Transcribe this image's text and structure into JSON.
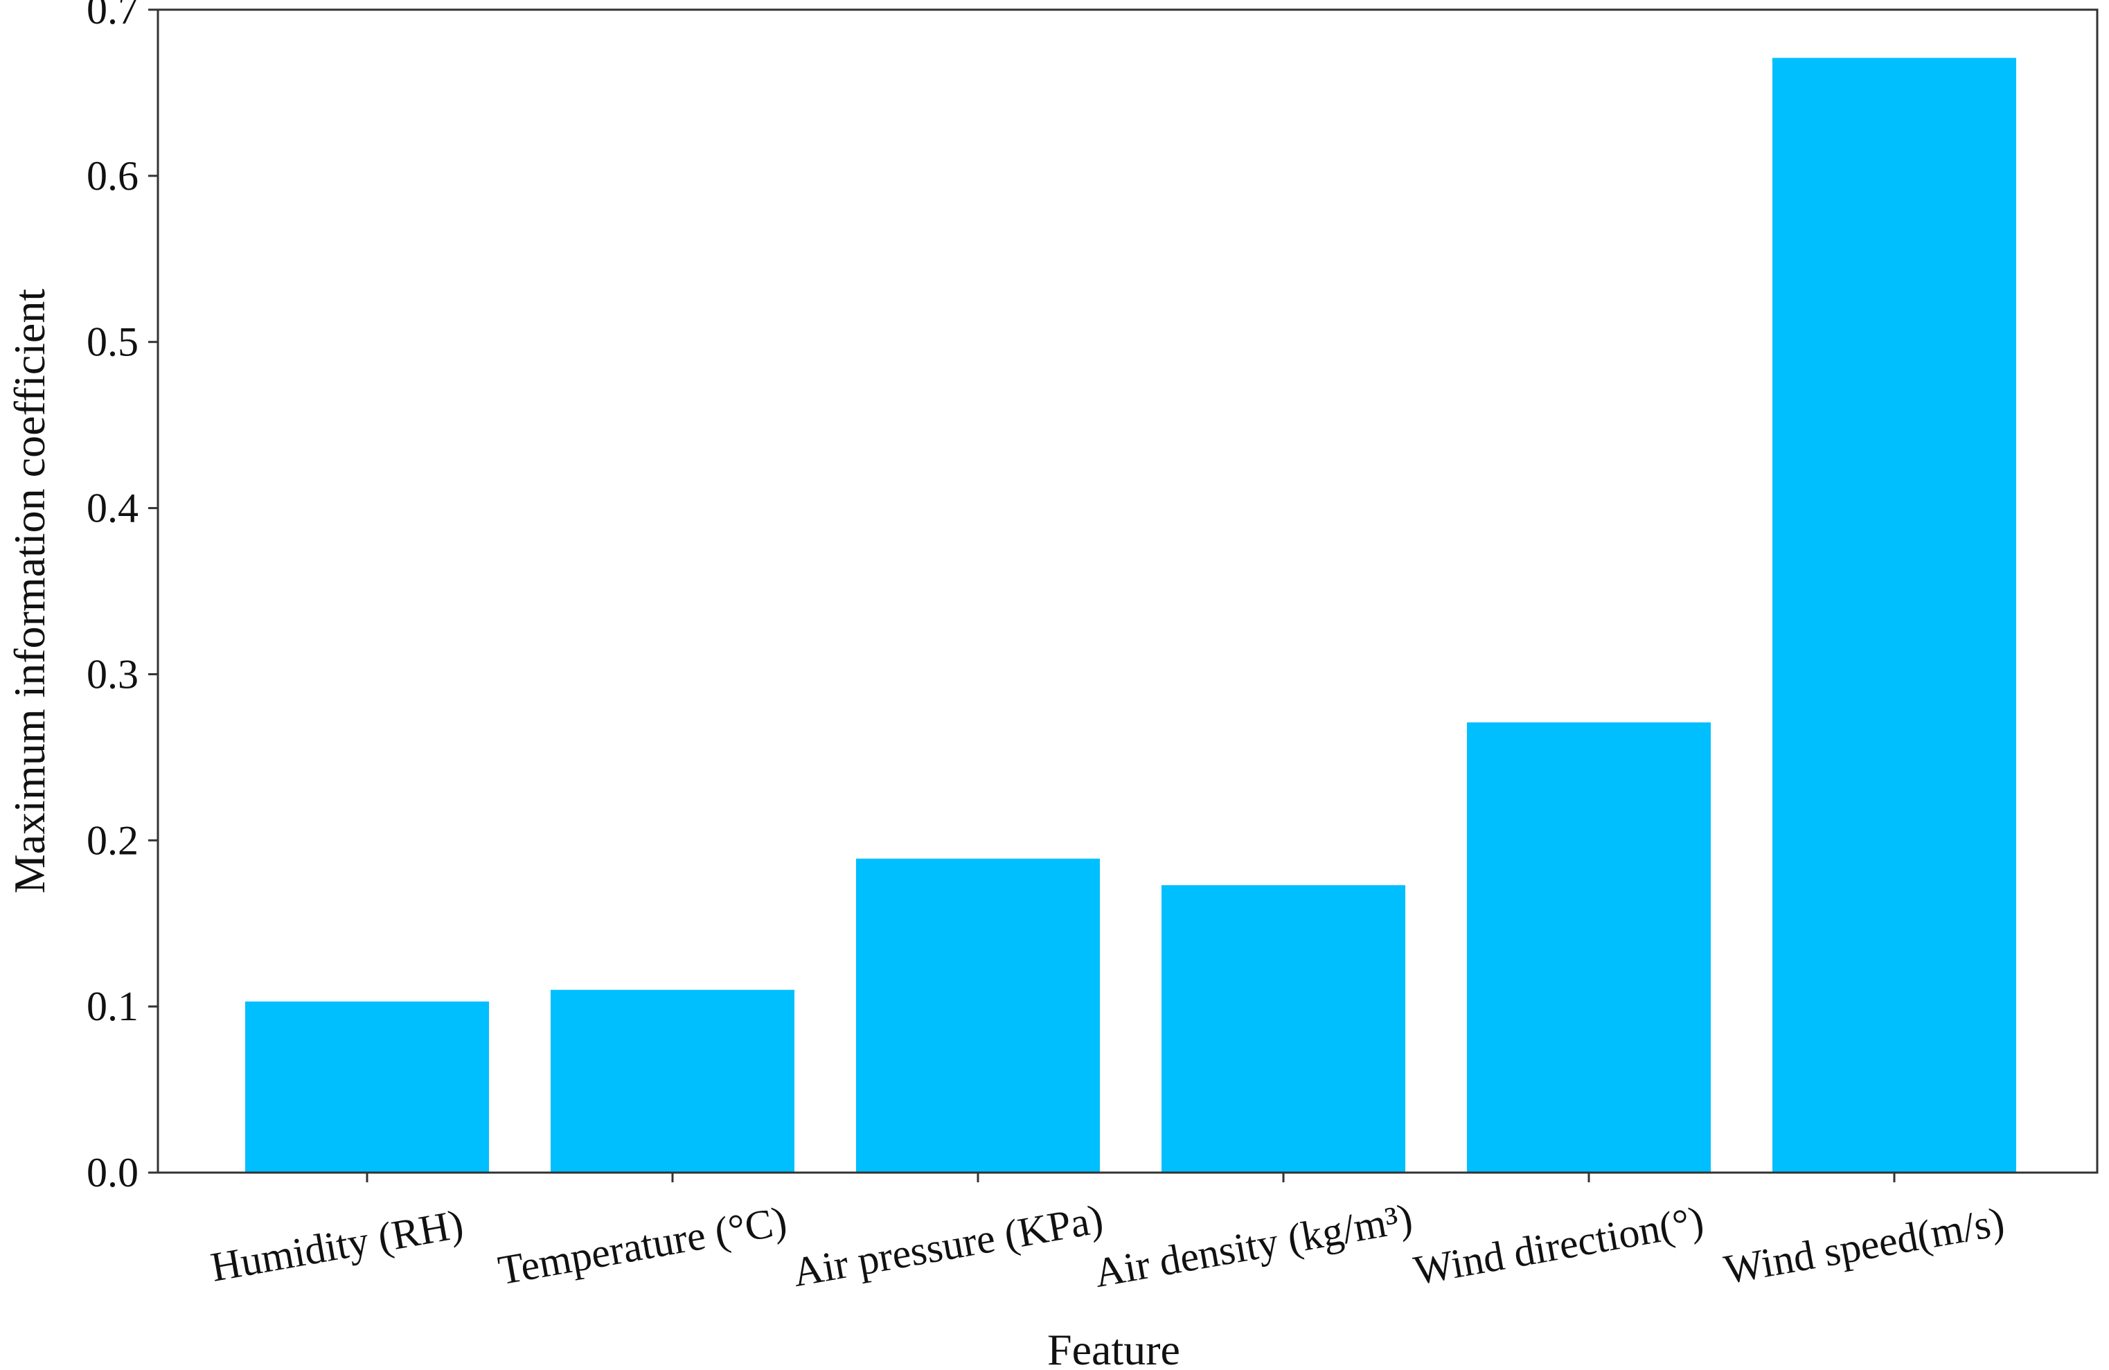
{
  "chart_data": {
    "type": "bar",
    "categories": [
      "Humidity (RH)",
      "Temperature (°C)",
      "Air pressure (KPa)",
      "Air density (kg/m³)",
      "Wind direction(°)",
      "Wind speed(m/s)"
    ],
    "values": [
      0.103,
      0.11,
      0.189,
      0.173,
      0.271,
      0.671
    ],
    "title": "",
    "xlabel": "Feature",
    "ylabel": "Maximum information coefficient",
    "ylim": [
      0,
      0.7
    ],
    "yticks": [
      "0.0",
      "0.1",
      "0.2",
      "0.3",
      "0.4",
      "0.5",
      "0.6",
      "0.7"
    ],
    "bar_color": "#00BFFF",
    "grid": false,
    "legend": "none"
  }
}
